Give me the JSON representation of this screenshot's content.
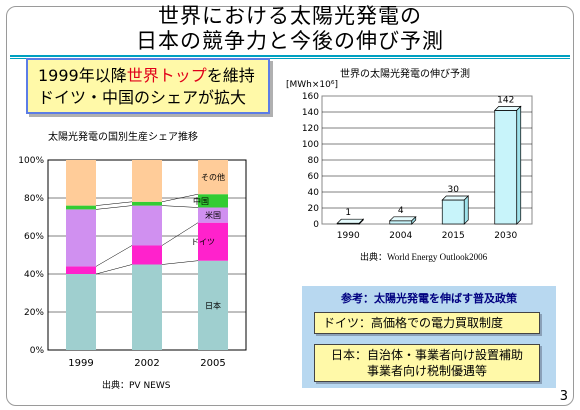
{
  "title": {
    "line1": "世界における太陽光発電の",
    "line2": "日本の競争力と今後の伸び予測"
  },
  "callout": {
    "line1_pre": "1999年以降",
    "line1_highlight": "世界トップ",
    "line1_post": "を維持",
    "line2": "ドイツ・中国のシェアが拡大"
  },
  "colors": {
    "japan": "#9fcfcf",
    "germany": "#ff22cc",
    "usa": "#d090f0",
    "china": "#33cc33",
    "other": "#ffcc99",
    "forecast_bar": "#c8f4fa",
    "title_rule": "#00a0c0",
    "callout_bg": "#fff9a8",
    "highlight": "#e0001a"
  },
  "share_chart": {
    "source": "出典：PV  NEWS"
  },
  "forecast_chart": {
    "source_prefix": "出典：",
    "source_name": "World Energy Outlook2006"
  },
  "policy": {
    "heading": "参考：太陽光発電を伸ばす普及政策",
    "germany": "ドイツ：高価格での電力買取制度",
    "japan_line1": "日本：自治体・事業者向け設置補助",
    "japan_line2": "事業者向け税制優遇等"
  },
  "page_number": "3",
  "chart_data": [
    {
      "type": "bar",
      "stacked": true,
      "title": "太陽光発電の国別生産シェア推移",
      "categories": [
        "1999",
        "2002",
        "2005"
      ],
      "series": [
        {
          "name": "日本",
          "values": [
            40,
            45,
            47
          ]
        },
        {
          "name": "ドイツ",
          "values": [
            4,
            10,
            20
          ]
        },
        {
          "name": "米国",
          "values": [
            30,
            21,
            8
          ]
        },
        {
          "name": "中国",
          "values": [
            2,
            2,
            7
          ]
        },
        {
          "name": "その他",
          "values": [
            24,
            22,
            18
          ]
        }
      ],
      "ylim": [
        0,
        100
      ],
      "yticks": [
        "0%",
        "20%",
        "40%",
        "60%",
        "80%",
        "100%"
      ],
      "grid": true,
      "legend": "inline labels on 2005 bar"
    },
    {
      "type": "bar",
      "title": "世界の太陽光発電の伸び予測",
      "categories": [
        "1990",
        "2004",
        "2015",
        "2030"
      ],
      "values": [
        1,
        4,
        30,
        142
      ],
      "ylabel": "[MWh×10⁶]",
      "ylim": [
        0,
        160
      ],
      "yticks": [
        0,
        20,
        40,
        60,
        80,
        100,
        120,
        140,
        160
      ],
      "grid": true
    }
  ]
}
